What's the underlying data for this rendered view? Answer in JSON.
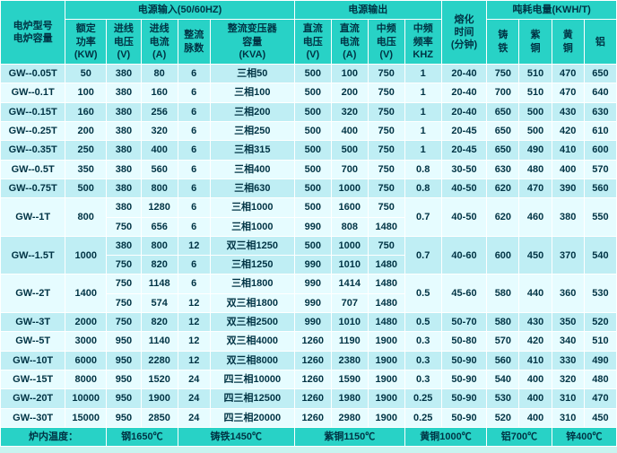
{
  "headers": {
    "group_input": "电源输入(50/60HZ)",
    "group_output": "电源输出",
    "group_energy": "吨耗电量(KWH/T)",
    "model_l1": "电炉型号",
    "model_l2": "电炉容量",
    "power_l1": "额定",
    "power_l2": "功率",
    "power_l3": "(KW)",
    "involt_l1": "进线",
    "involt_l2": "电压",
    "involt_l3": "(V)",
    "incur_l1": "进线",
    "incur_l2": "电流",
    "incur_l3": "(A)",
    "pulse_l1": "整流",
    "pulse_l2": "脉数",
    "trans_l1": "整流变压器",
    "trans_l2": "容量",
    "trans_l3": "(KVA)",
    "dcv_l1": "直流",
    "dcv_l2": "电压",
    "dcv_l3": "(V)",
    "dca_l1": "直流",
    "dca_l2": "电流",
    "dca_l3": "(A)",
    "mfv_l1": "中频",
    "mfv_l2": "电压",
    "mfv_l3": "(V)",
    "mff_l1": "中频",
    "mff_l2": "频率",
    "mff_l3": "KHZ",
    "melt_l1": "熔化",
    "melt_l2": "时间",
    "melt_l3": "(分钟)",
    "iron": "铸",
    "iron2": "铁",
    "cu": "紫",
    "cu2": "铜",
    "brass": "黄",
    "brass2": "铜",
    "al": "铝"
  },
  "rows": [
    {
      "m": "GW--0.05T",
      "p": "50",
      "iv": "380",
      "ia": "80",
      "pl": "6",
      "tr": "三相50",
      "dv": "500",
      "da": "100",
      "mv": "750",
      "mf": "1",
      "t": "20-40",
      "fe": "750",
      "cu": "510",
      "br": "470",
      "al": "650"
    },
    {
      "m": "GW--0.1T",
      "p": "100",
      "iv": "380",
      "ia": "160",
      "pl": "6",
      "tr": "三相100",
      "dv": "500",
      "da": "200",
      "mv": "750",
      "mf": "1",
      "t": "20-40",
      "fe": "700",
      "cu": "510",
      "br": "470",
      "al": "640"
    },
    {
      "m": "GW--0.15T",
      "p": "160",
      "iv": "380",
      "ia": "256",
      "pl": "6",
      "tr": "三相200",
      "dv": "500",
      "da": "320",
      "mv": "750",
      "mf": "1",
      "t": "20-40",
      "fe": "650",
      "cu": "500",
      "br": "430",
      "al": "630"
    },
    {
      "m": "GW--0.25T",
      "p": "200",
      "iv": "380",
      "ia": "320",
      "pl": "6",
      "tr": "三相250",
      "dv": "500",
      "da": "400",
      "mv": "750",
      "mf": "1",
      "t": "20-45",
      "fe": "650",
      "cu": "500",
      "br": "420",
      "al": "610"
    },
    {
      "m": "GW--0.35T",
      "p": "250",
      "iv": "380",
      "ia": "400",
      "pl": "6",
      "tr": "三相315",
      "dv": "500",
      "da": "500",
      "mv": "750",
      "mf": "1",
      "t": "20-45",
      "fe": "650",
      "cu": "490",
      "br": "410",
      "al": "600"
    },
    {
      "m": "GW--0.5T",
      "p": "350",
      "iv": "380",
      "ia": "560",
      "pl": "6",
      "tr": "三相400",
      "dv": "500",
      "da": "700",
      "mv": "750",
      "mf": "0.8",
      "t": "30-50",
      "fe": "630",
      "cu": "480",
      "br": "400",
      "al": "570"
    },
    {
      "m": "GW--0.75T",
      "p": "500",
      "iv": "380",
      "ia": "800",
      "pl": "6",
      "tr": "三相630",
      "dv": "500",
      "da": "1000",
      "mv": "750",
      "mf": "0.8",
      "t": "40-50",
      "fe": "620",
      "cu": "470",
      "br": "390",
      "al": "560"
    },
    {
      "m": "GW--1T",
      "p": "800",
      "sub": [
        {
          "iv": "380",
          "ia": "1280",
          "pl": "6",
          "tr": "三相1000",
          "dv": "500",
          "da": "1600",
          "mv": "750"
        },
        {
          "iv": "750",
          "ia": "656",
          "pl": "6",
          "tr": "三相1000",
          "dv": "990",
          "da": "808",
          "mv": "1480"
        }
      ],
      "mf": "0.7",
      "t": "40-50",
      "fe": "620",
      "cu": "460",
      "br": "380",
      "al": "550"
    },
    {
      "m": "GW--1.5T",
      "p": "1000",
      "sub": [
        {
          "iv": "380",
          "ia": "800",
          "pl": "12",
          "tr": "双三相1250",
          "dv": "500",
          "da": "1000",
          "mv": "750"
        },
        {
          "iv": "750",
          "ia": "820",
          "pl": "6",
          "tr": "三相1250",
          "dv": "990",
          "da": "1010",
          "mv": "1480"
        }
      ],
      "mf": "0.7",
      "t": "40-60",
      "fe": "600",
      "cu": "450",
      "br": "370",
      "al": "540"
    },
    {
      "m": "GW--2T",
      "p": "1400",
      "sub": [
        {
          "iv": "750",
          "ia": "1148",
          "pl": "6",
          "tr": "三相1800",
          "dv": "990",
          "da": "1414",
          "mv": "1480"
        },
        {
          "iv": "750",
          "ia": "574",
          "pl": "12",
          "tr": "双三相1800",
          "dv": "990",
          "da": "707",
          "mv": "1480"
        }
      ],
      "mf": "0.5",
      "t": "45-60",
      "fe": "580",
      "cu": "440",
      "br": "360",
      "al": "530"
    },
    {
      "m": "GW--3T",
      "p": "2000",
      "iv": "750",
      "ia": "820",
      "pl": "12",
      "tr": "双三相2500",
      "dv": "990",
      "da": "1010",
      "mv": "1480",
      "mf": "0.5",
      "t": "50-70",
      "fe": "580",
      "cu": "430",
      "br": "350",
      "al": "520"
    },
    {
      "m": "GW--5T",
      "p": "3000",
      "iv": "950",
      "ia": "1140",
      "pl": "12",
      "tr": "双三相4000",
      "dv": "1260",
      "da": "1190",
      "mv": "1900",
      "mf": "0.3",
      "t": "50-80",
      "fe": "570",
      "cu": "420",
      "br": "340",
      "al": "510"
    },
    {
      "m": "GW--10T",
      "p": "6000",
      "iv": "950",
      "ia": "2280",
      "pl": "12",
      "tr": "双三相8000",
      "dv": "1260",
      "da": "2380",
      "mv": "1900",
      "mf": "0.3",
      "t": "50-90",
      "fe": "560",
      "cu": "410",
      "br": "330",
      "al": "490"
    },
    {
      "m": "GW--15T",
      "p": "8000",
      "iv": "950",
      "ia": "1520",
      "pl": "24",
      "tr": "四三相10000",
      "dv": "1260",
      "da": "1590",
      "mv": "1900",
      "mf": "0.3",
      "t": "50-90",
      "fe": "540",
      "cu": "400",
      "br": "320",
      "al": "480"
    },
    {
      "m": "GW--20T",
      "p": "10000",
      "iv": "950",
      "ia": "1900",
      "pl": "24",
      "tr": "四三相12500",
      "dv": "1260",
      "da": "1980",
      "mv": "1900",
      "mf": "0.25",
      "t": "50-90",
      "fe": "530",
      "cu": "400",
      "br": "310",
      "al": "470"
    },
    {
      "m": "GW--30T",
      "p": "15000",
      "iv": "950",
      "ia": "2850",
      "pl": "24",
      "tr": "四三相20000",
      "dv": "1260",
      "da": "2980",
      "mv": "1900",
      "mf": "0.25",
      "t": "50-90",
      "fe": "520",
      "cu": "400",
      "br": "310",
      "al": "450"
    }
  ],
  "footer": {
    "label": "炉内温度：",
    "t1": "钢1650℃",
    "t2": "铸铁1450℃",
    "t3": "紫铜1150℃",
    "t4": "黄铜1000℃",
    "t5": "铝700℃",
    "t6": "锌400℃"
  },
  "colors": {
    "header_bg": "#28d2c6",
    "rowA_bg": "#bfeef4",
    "rowB_bg": "#e6fcff",
    "border": "#ffffff",
    "text": "#003344"
  }
}
